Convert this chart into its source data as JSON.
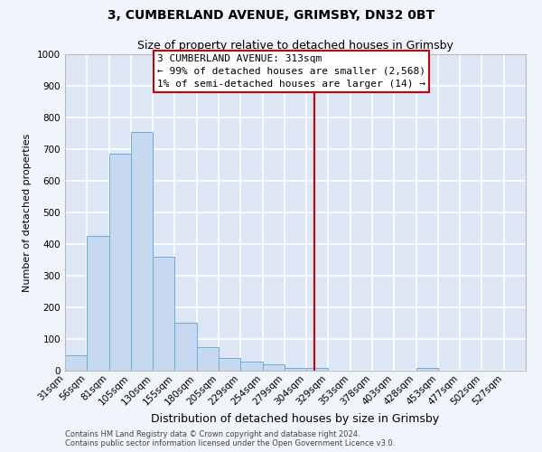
{
  "title": "3, CUMBERLAND AVENUE, GRIMSBY, DN32 0BT",
  "subtitle": "Size of property relative to detached houses in Grimsby",
  "xlabel": "Distribution of detached houses by size in Grimsby",
  "ylabel": "Number of detached properties",
  "bar_labels": [
    "31sqm",
    "56sqm",
    "81sqm",
    "105sqm",
    "130sqm",
    "155sqm",
    "180sqm",
    "205sqm",
    "229sqm",
    "254sqm",
    "279sqm",
    "304sqm",
    "329sqm",
    "353sqm",
    "378sqm",
    "403sqm",
    "428sqm",
    "453sqm",
    "477sqm",
    "502sqm",
    "527sqm"
  ],
  "bar_values": [
    50,
    425,
    685,
    755,
    360,
    152,
    75,
    40,
    30,
    20,
    10,
    8,
    0,
    0,
    0,
    0,
    8,
    0,
    0,
    0,
    0
  ],
  "bar_face_color": "#c6d9f0",
  "bar_edge_color": "#6baed6",
  "plot_bg_color": "#dce6f5",
  "fig_bg_color": "#f0f4fb",
  "grid_color": "#ffffff",
  "ylim": [
    0,
    1000
  ],
  "yticks": [
    0,
    100,
    200,
    300,
    400,
    500,
    600,
    700,
    800,
    900,
    1000
  ],
  "vline_sqm": 313,
  "vline_sqm_low": 304,
  "vline_sqm_high": 329,
  "vline_idx_low": 11,
  "vline_color": "#cc0000",
  "annotation_title": "3 CUMBERLAND AVENUE: 313sqm",
  "annotation_line1": "← 99% of detached houses are smaller (2,568)",
  "annotation_line2": "1% of semi-detached houses are larger (14) →",
  "footer1": "Contains HM Land Registry data © Crown copyright and database right 2024.",
  "footer2": "Contains public sector information licensed under the Open Government Licence v3.0.",
  "title_fontsize": 10,
  "subtitle_fontsize": 9,
  "xlabel_fontsize": 9,
  "ylabel_fontsize": 8,
  "tick_fontsize": 7.5,
  "footer_fontsize": 6,
  "ann_fontsize": 8
}
